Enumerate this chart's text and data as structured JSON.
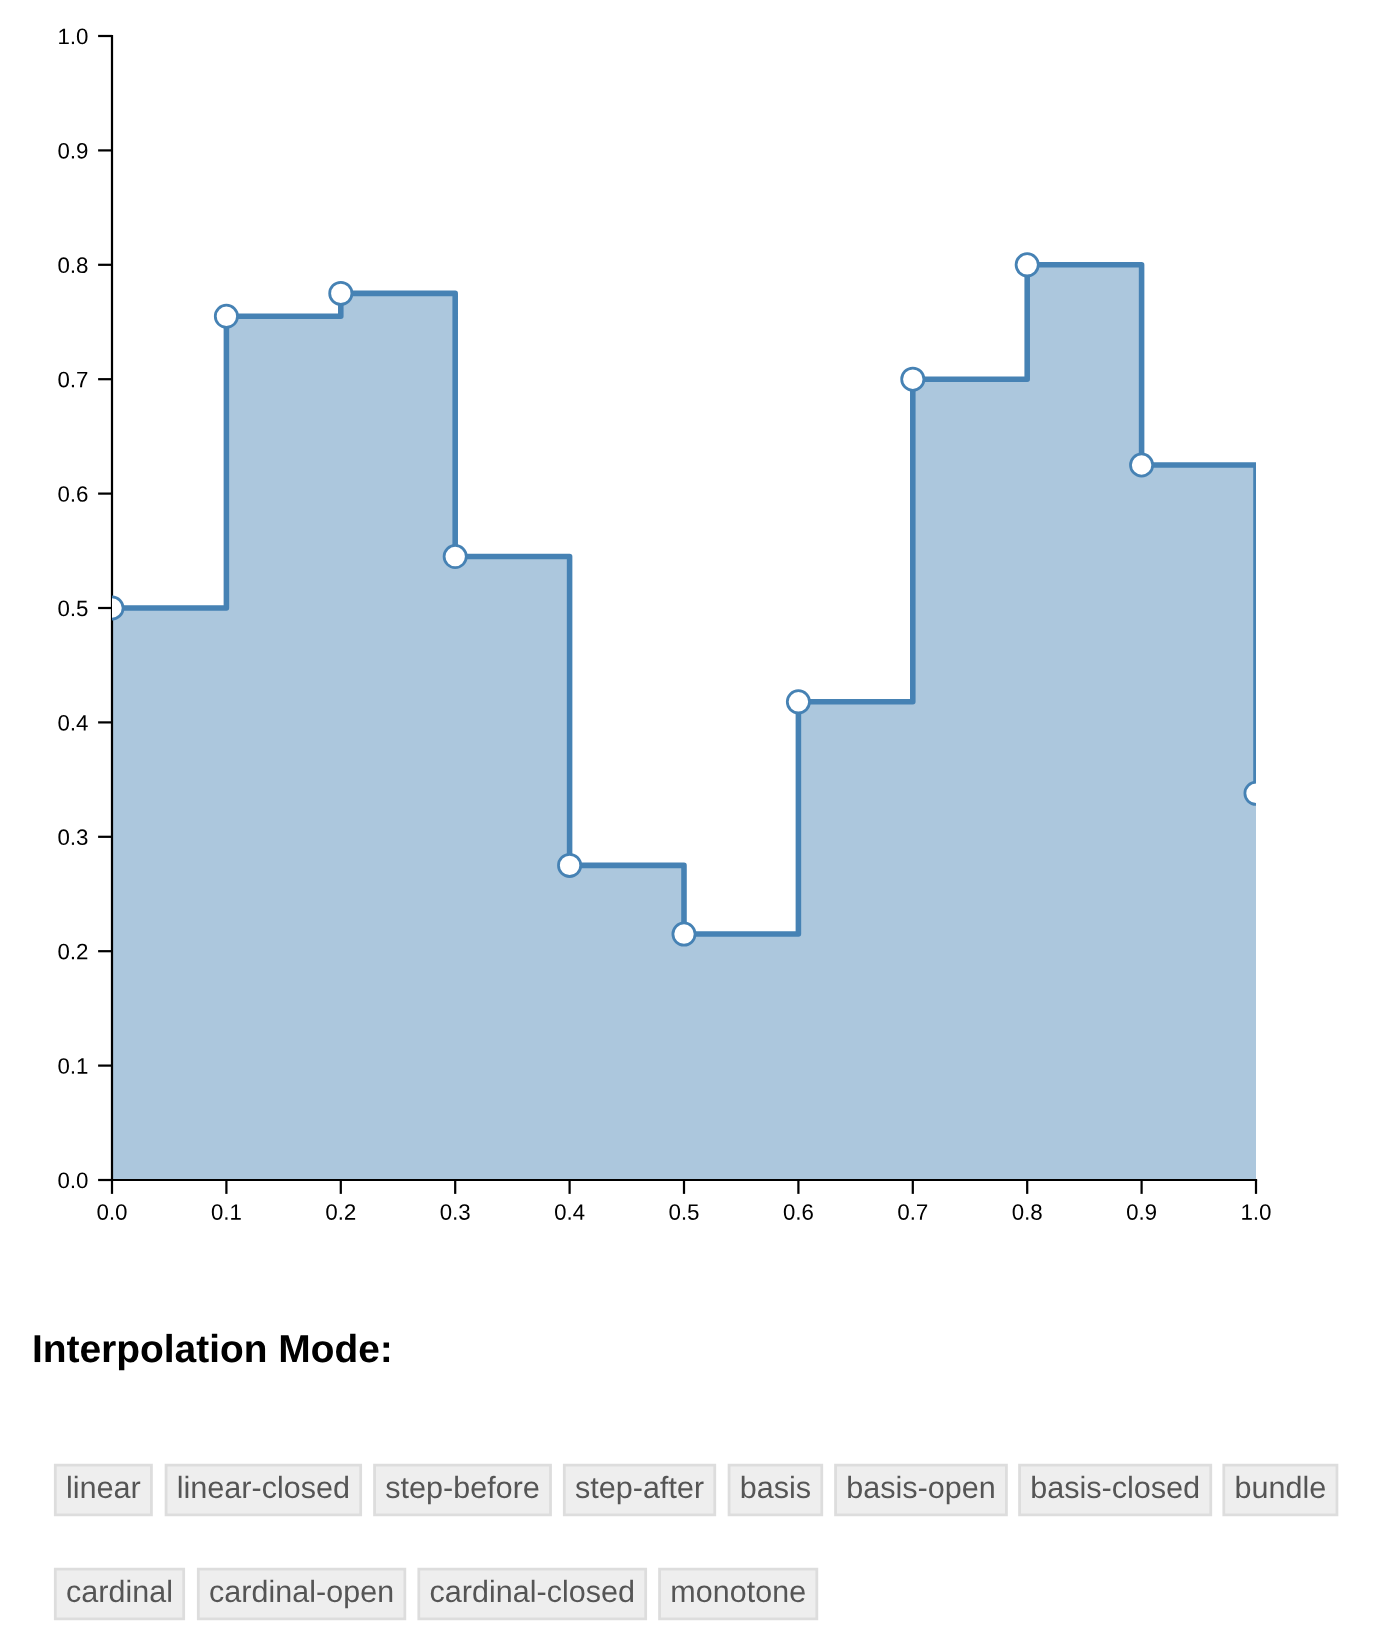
{
  "chart_data": {
    "type": "area",
    "series": [
      {
        "color": "#4682b4",
        "x": [
          0,
          0.1,
          0.1,
          0.2,
          0.2,
          0.3,
          0.3,
          0.4,
          0.4,
          0.5,
          0.5,
          0.6,
          0.6,
          0.7,
          0.7,
          0.8,
          0.8,
          0.9,
          0.9,
          1.0,
          1.0
        ],
        "values": [
          0.5,
          0.5,
          0.755,
          0.755,
          0.775,
          0.775,
          0.545,
          0.545,
          0.275,
          0.275,
          0.215,
          0.215,
          0.418,
          0.418,
          0.7,
          0.7,
          0.8,
          0.8,
          0.625,
          0.625,
          0.338
        ]
      },
      {
        "type": "scatter",
        "marker": "circle",
        "color": "#4682b4",
        "x": [
          0,
          0.1,
          0.2,
          0.3,
          0.4,
          0.5,
          0.6,
          0.7,
          0.8,
          0.9,
          1.0
        ],
        "values": [
          0.5,
          0.755,
          0.775,
          0.545,
          0.275,
          0.215,
          0.418,
          0.7,
          0.8,
          0.625,
          0.338
        ]
      }
    ],
    "xlim": [
      0,
      1
    ],
    "ylim": [
      0,
      1
    ],
    "xticks": [
      {
        "value": 0,
        "label": "0.0"
      },
      {
        "value": 0.1,
        "label": "0.1"
      },
      {
        "value": 0.2,
        "label": "0.2"
      },
      {
        "value": 0.3,
        "label": "0.3"
      },
      {
        "value": 0.4,
        "label": "0.4"
      },
      {
        "value": 0.5,
        "label": "0.5"
      },
      {
        "value": 0.6,
        "label": "0.6"
      },
      {
        "value": 0.7,
        "label": "0.7"
      },
      {
        "value": 0.8,
        "label": "0.8"
      },
      {
        "value": 0.9,
        "label": "0.9"
      },
      {
        "value": 1,
        "label": "1.0"
      }
    ],
    "yticks": [
      {
        "value": 0,
        "label": "0.0"
      },
      {
        "value": 0.1,
        "label": "0.1"
      },
      {
        "value": 0.2,
        "label": "0.2"
      },
      {
        "value": 0.3,
        "label": "0.3"
      },
      {
        "value": 0.4,
        "label": "0.4"
      },
      {
        "value": 0.5,
        "label": "0.5"
      },
      {
        "value": 0.6,
        "label": "0.6"
      },
      {
        "value": 0.7,
        "label": "0.7"
      },
      {
        "value": 0.8,
        "label": "0.8"
      },
      {
        "value": 0.9,
        "label": "0.9"
      },
      {
        "value": 1,
        "label": "1.0"
      }
    ],
    "grid": false,
    "annotations": [
      "Interpolation Mode:",
      "linear",
      "linear-closed",
      "step-before",
      "step-after",
      "basis",
      "basis-open",
      "basis-closed",
      "bundle",
      "cardinal",
      "cardinal-open",
      "cardinal-closed",
      "monotone"
    ]
  }
}
